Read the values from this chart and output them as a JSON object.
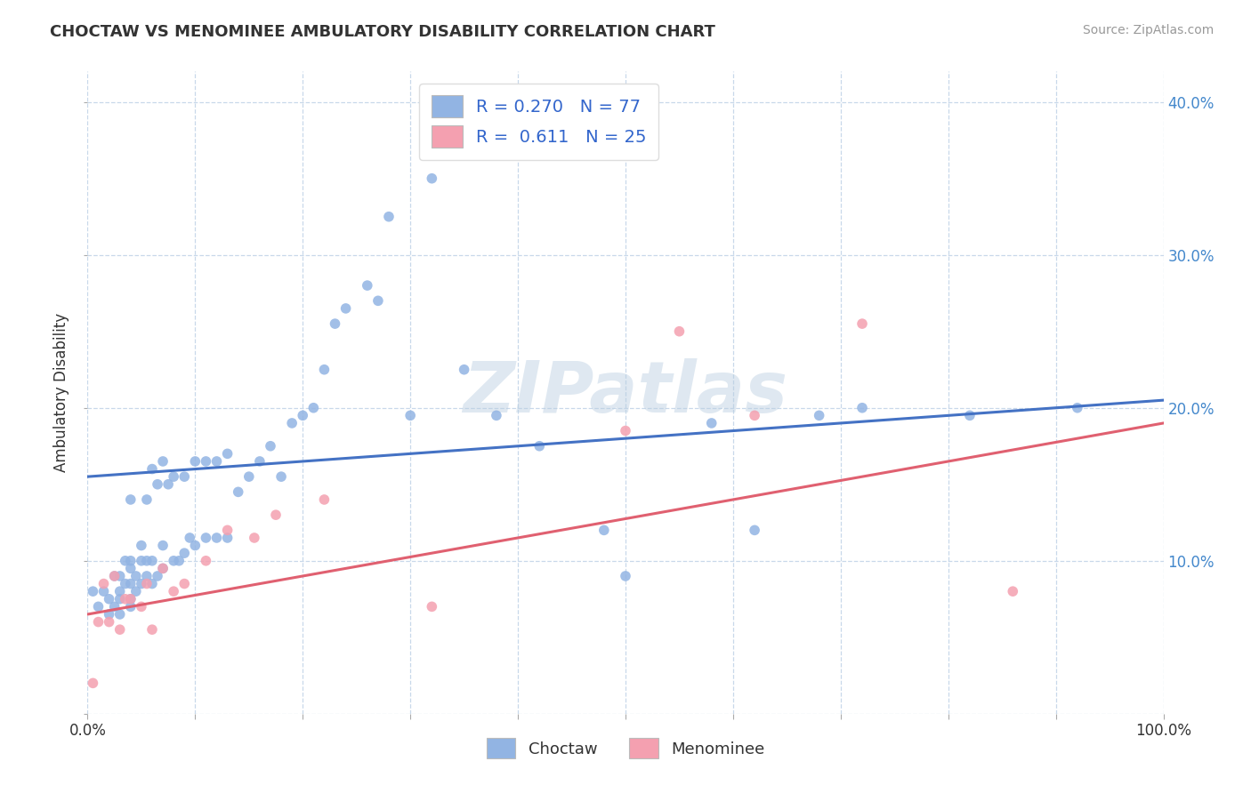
{
  "title": "CHOCTAW VS MENOMINEE AMBULATORY DISABILITY CORRELATION CHART",
  "source": "Source: ZipAtlas.com",
  "ylabel": "Ambulatory Disability",
  "choctaw_R": 0.27,
  "choctaw_N": 77,
  "menominee_R": 0.611,
  "menominee_N": 25,
  "choctaw_color": "#92b4e3",
  "menominee_color": "#f4a0b0",
  "choctaw_line_color": "#4472c4",
  "menominee_line_color": "#e06070",
  "background_color": "#ffffff",
  "grid_color": "#c8d8ea",
  "watermark": "ZIPatlas",
  "xlim": [
    0.0,
    1.0
  ],
  "ylim": [
    0.0,
    0.42
  ],
  "xticks": [
    0.0,
    0.1,
    0.2,
    0.3,
    0.4,
    0.5,
    0.6,
    0.7,
    0.8,
    0.9,
    1.0
  ],
  "yticks": [
    0.0,
    0.1,
    0.2,
    0.3,
    0.4
  ],
  "xtick_labels_left": "0.0%",
  "xtick_labels_right": "100.0%",
  "ytick_labels": [
    "",
    "10.0%",
    "20.0%",
    "30.0%",
    "40.0%"
  ],
  "choctaw_x": [
    0.005,
    0.01,
    0.015,
    0.02,
    0.02,
    0.025,
    0.025,
    0.03,
    0.03,
    0.03,
    0.03,
    0.035,
    0.035,
    0.04,
    0.04,
    0.04,
    0.04,
    0.04,
    0.04,
    0.045,
    0.045,
    0.05,
    0.05,
    0.05,
    0.055,
    0.055,
    0.055,
    0.06,
    0.06,
    0.06,
    0.065,
    0.065,
    0.07,
    0.07,
    0.07,
    0.075,
    0.08,
    0.08,
    0.085,
    0.09,
    0.09,
    0.095,
    0.1,
    0.1,
    0.11,
    0.11,
    0.12,
    0.12,
    0.13,
    0.13,
    0.14,
    0.15,
    0.16,
    0.17,
    0.18,
    0.19,
    0.2,
    0.21,
    0.22,
    0.23,
    0.24,
    0.26,
    0.27,
    0.28,
    0.3,
    0.32,
    0.35,
    0.38,
    0.42,
    0.48,
    0.5,
    0.58,
    0.62,
    0.68,
    0.72,
    0.82,
    0.92
  ],
  "choctaw_y": [
    0.08,
    0.07,
    0.08,
    0.065,
    0.075,
    0.07,
    0.09,
    0.065,
    0.075,
    0.08,
    0.09,
    0.085,
    0.1,
    0.07,
    0.075,
    0.085,
    0.095,
    0.1,
    0.14,
    0.08,
    0.09,
    0.085,
    0.1,
    0.11,
    0.09,
    0.1,
    0.14,
    0.085,
    0.1,
    0.16,
    0.09,
    0.15,
    0.095,
    0.11,
    0.165,
    0.15,
    0.1,
    0.155,
    0.1,
    0.105,
    0.155,
    0.115,
    0.11,
    0.165,
    0.115,
    0.165,
    0.115,
    0.165,
    0.115,
    0.17,
    0.145,
    0.155,
    0.165,
    0.175,
    0.155,
    0.19,
    0.195,
    0.2,
    0.225,
    0.255,
    0.265,
    0.28,
    0.27,
    0.325,
    0.195,
    0.35,
    0.225,
    0.195,
    0.175,
    0.12,
    0.09,
    0.19,
    0.12,
    0.195,
    0.2,
    0.195,
    0.2
  ],
  "menominee_x": [
    0.005,
    0.01,
    0.015,
    0.02,
    0.025,
    0.03,
    0.035,
    0.04,
    0.05,
    0.055,
    0.06,
    0.07,
    0.08,
    0.09,
    0.11,
    0.13,
    0.155,
    0.175,
    0.22,
    0.32,
    0.5,
    0.55,
    0.62,
    0.72,
    0.86
  ],
  "menominee_y": [
    0.02,
    0.06,
    0.085,
    0.06,
    0.09,
    0.055,
    0.075,
    0.075,
    0.07,
    0.085,
    0.055,
    0.095,
    0.08,
    0.085,
    0.1,
    0.12,
    0.115,
    0.13,
    0.14,
    0.07,
    0.185,
    0.25,
    0.195,
    0.255,
    0.08
  ],
  "choctaw_line_start_y": 0.155,
  "choctaw_line_end_y": 0.205,
  "menominee_line_start_y": 0.065,
  "menominee_line_end_y": 0.19
}
